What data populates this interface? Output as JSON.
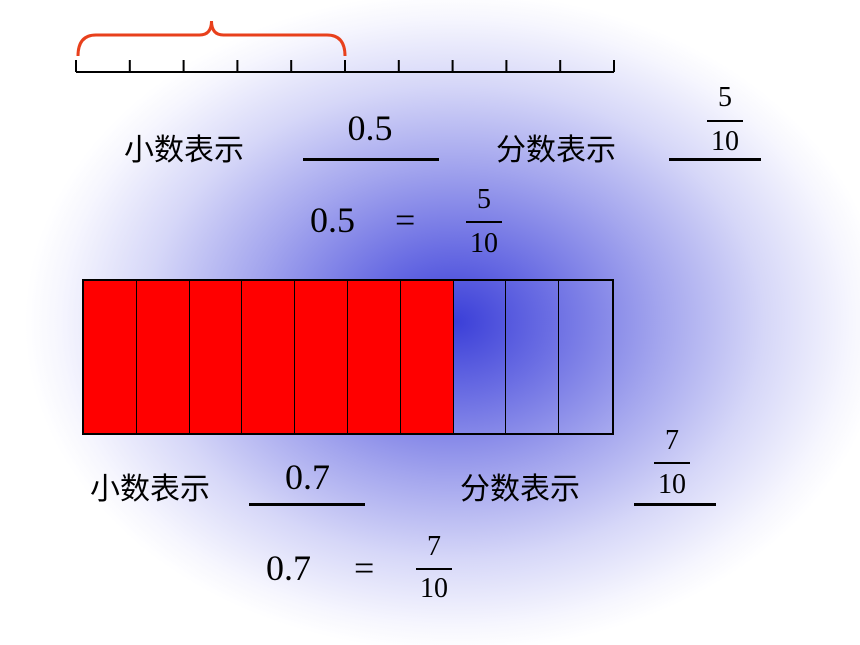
{
  "top_example": {
    "decimal_label": "小数表示",
    "decimal_value": "0.5",
    "fraction_label": "分数表示",
    "fraction_numerator": "5",
    "fraction_denominator": "10",
    "equation_left": "0.5",
    "equation_sign": "=",
    "equation_numerator": "5",
    "equation_denominator": "10"
  },
  "ruler": {
    "segments": 10,
    "bracketed_segments": 5,
    "colors": {
      "bracket": "#e8401c",
      "tick": "#000000"
    }
  },
  "bar_model": {
    "segments": 10,
    "shaded_segments": 7,
    "colors": {
      "shaded": "#ff0000",
      "unshaded": "transparent",
      "border": "#000000"
    }
  },
  "bottom_example": {
    "decimal_label": "小数表示",
    "decimal_value": "0.7",
    "fraction_label": "分数表示",
    "fraction_numerator": "7",
    "fraction_denominator": "10",
    "equation_left": "0.7",
    "equation_sign": "=",
    "equation_numerator": "7",
    "equation_denominator": "10"
  }
}
